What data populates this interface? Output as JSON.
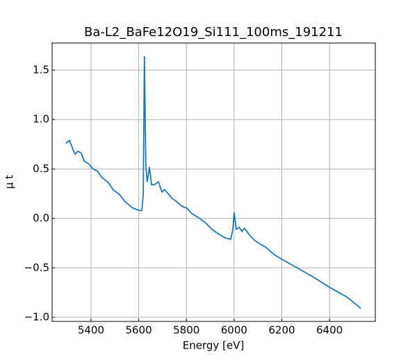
{
  "chart_data": {
    "type": "line",
    "title": "Ba-L2_BaFe12O19_Si111_100ms_191211",
    "xlabel": "Energy [eV]",
    "ylabel": "μ t",
    "x": [
      5295,
      5310,
      5324,
      5333,
      5345,
      5359,
      5371,
      5391,
      5409,
      5426,
      5447,
      5470,
      5493,
      5520,
      5543,
      5572,
      5601,
      5613,
      5619,
      5624,
      5630,
      5636,
      5645,
      5654,
      5665,
      5683,
      5697,
      5709,
      5727,
      5741,
      5759,
      5782,
      5799,
      5823,
      5849,
      5878,
      5907,
      5936,
      5966,
      5986,
      5995,
      6000,
      6009,
      6021,
      6033,
      6044,
      6062,
      6085,
      6103,
      6132,
      6170,
      6213,
      6257,
      6330,
      6403,
      6476,
      6531
    ],
    "series": [
      {
        "name": "mu",
        "color": "#1f77b4",
        "values": [
          0.76,
          0.79,
          0.7,
          0.65,
          0.68,
          0.66,
          0.58,
          0.55,
          0.5,
          0.48,
          0.41,
          0.37,
          0.29,
          0.24,
          0.17,
          0.11,
          0.08,
          0.08,
          0.24,
          1.64,
          0.52,
          0.37,
          0.52,
          0.34,
          0.34,
          0.37,
          0.27,
          0.29,
          0.24,
          0.2,
          0.17,
          0.12,
          0.11,
          0.05,
          0.01,
          -0.04,
          -0.11,
          -0.16,
          -0.2,
          -0.21,
          -0.11,
          0.06,
          -0.11,
          -0.09,
          -0.13,
          -0.1,
          -0.16,
          -0.22,
          -0.25,
          -0.29,
          -0.37,
          -0.43,
          -0.49,
          -0.59,
          -0.7,
          -0.8,
          -0.91
        ]
      }
    ],
    "xlim": [
      5237,
      6592
    ],
    "ylim": [
      -1.042,
      1.774
    ],
    "xticks": [
      5400,
      5600,
      5800,
      6000,
      6200,
      6400
    ],
    "yticks": [
      {
        "value": 1.5,
        "label": "1.5"
      },
      {
        "value": 1.0,
        "label": "1.0"
      },
      {
        "value": 0.5,
        "label": "0.5"
      },
      {
        "value": 0.0,
        "label": "0.0"
      },
      {
        "value": -0.5,
        "label": "−0.5"
      },
      {
        "value": -1.0,
        "label": "−1.0"
      }
    ],
    "grid": true
  }
}
